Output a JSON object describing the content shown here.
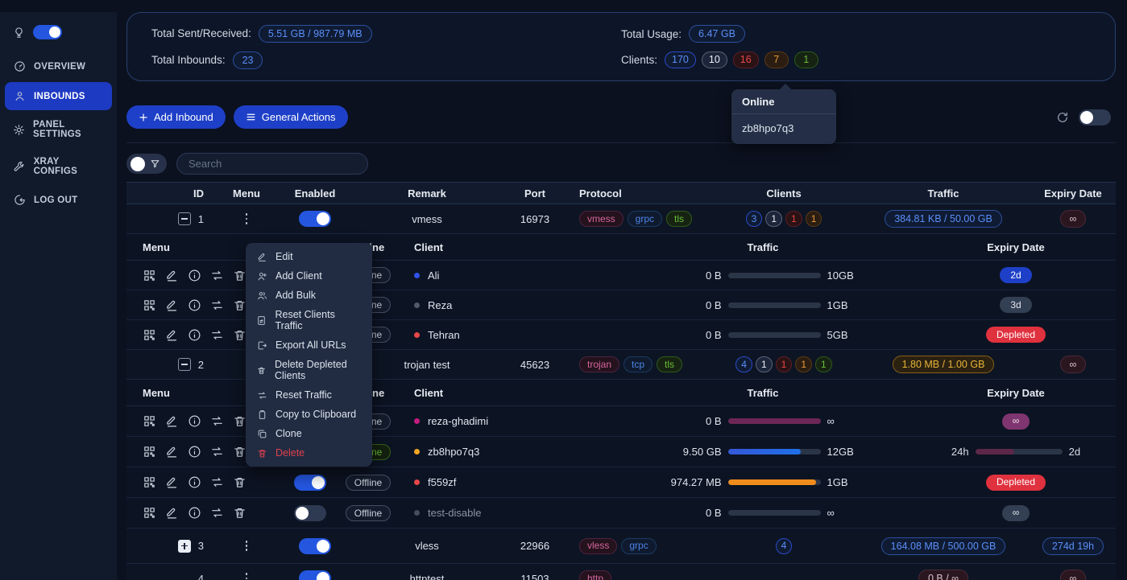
{
  "colors": {
    "accent_blue": "#1e40c8",
    "tag_blue": "#5b8ff9",
    "tag_pink": "#d5669c",
    "tag_green": "#6abe39",
    "badge_red": "#e84749",
    "badge_orange": "#e89a3c",
    "depleted_red": "#e0313f",
    "bar_blue": "#1f6fe8",
    "bar_orange": "#f08c1c",
    "bar_magenta": "#6d2757"
  },
  "sidebar": {
    "items": [
      {
        "label": "OVERVIEW"
      },
      {
        "label": "INBOUNDS"
      },
      {
        "label": "PANEL SETTINGS"
      },
      {
        "label": "XRAY CONFIGS"
      },
      {
        "label": "LOG OUT"
      }
    ]
  },
  "stats": {
    "sent_received_label": "Total Sent/Received:",
    "sent_received_value": "5.51 GB / 987.79 MB",
    "inbounds_label": "Total Inbounds:",
    "inbounds_value": "23",
    "usage_label": "Total Usage:",
    "usage_value": "6.47 GB",
    "clients_label": "Clients:",
    "client_badges": [
      {
        "value": "170",
        "color": "blue"
      },
      {
        "value": "10",
        "color": "gray"
      },
      {
        "value": "16",
        "color": "red"
      },
      {
        "value": "7",
        "color": "orange"
      },
      {
        "value": "1",
        "color": "green"
      }
    ]
  },
  "tooltip": {
    "title": "Online",
    "client": "zb8hpo7q3"
  },
  "toolbar": {
    "add_inbound": "Add Inbound",
    "general_actions": "General Actions"
  },
  "search": {
    "placeholder": "Search"
  },
  "table_headers": {
    "id": "ID",
    "menu": "Menu",
    "enabled": "Enabled",
    "remark": "Remark",
    "port": "Port",
    "protocol": "Protocol",
    "clients": "Clients",
    "traffic": "Traffic",
    "expiry": "Expiry Date"
  },
  "subtable_headers": {
    "menu": "Menu",
    "online": "Online",
    "client": "Client",
    "traffic": "Traffic",
    "expiry": "Expiry Date"
  },
  "context_menu": {
    "items": [
      {
        "label": "Edit"
      },
      {
        "label": "Add Client"
      },
      {
        "label": "Add Bulk"
      },
      {
        "label": "Reset Clients Traffic"
      },
      {
        "label": "Export All URLs"
      },
      {
        "label": "Delete Depleted Clients"
      },
      {
        "label": "Reset Traffic"
      },
      {
        "label": "Copy to Clipboard"
      },
      {
        "label": "Clone"
      },
      {
        "label": "Delete"
      }
    ]
  },
  "inbounds": [
    {
      "id": "1",
      "remark": "vmess",
      "port": "16973",
      "protocols": [
        "vmess",
        "grpc",
        "tls"
      ],
      "clients": [
        "3",
        "1",
        "1",
        "1"
      ],
      "traffic": "384.81 KB / 50.00 GB",
      "expiry": "∞"
    },
    {
      "id": "2",
      "remark": "trojan test",
      "port": "45623",
      "protocols": [
        "trojan",
        "tcp",
        "tls"
      ],
      "clients": [
        "4",
        "1",
        "1",
        "1",
        "1"
      ],
      "traffic": "1.80 MB / 1.00 GB",
      "expiry": "∞"
    },
    {
      "id": "3",
      "remark": "vless",
      "port": "22966",
      "protocols": [
        "vless",
        "grpc"
      ],
      "clients": [
        "4"
      ],
      "traffic": "164.08 MB / 500.00 GB",
      "expiry": "274d 19h"
    },
    {
      "id": "4",
      "remark": "httptest",
      "port": "11503",
      "protocols": [
        "http"
      ],
      "clients": [],
      "traffic": "0 B / ∞",
      "expiry": "∞"
    }
  ],
  "group1_clients": [
    {
      "name": "Ali",
      "status": "Offline",
      "used": "0 B",
      "total": "10GB",
      "bar_percent": 0,
      "expiry": "2d"
    },
    {
      "name": "Reza",
      "status": "Offline",
      "used": "0 B",
      "total": "1GB",
      "bar_percent": 0,
      "expiry": "3d"
    },
    {
      "name": "Tehran",
      "status": "Offline",
      "used": "0 B",
      "total": "5GB",
      "bar_percent": 0,
      "expiry": "Depleted"
    }
  ],
  "group2_clients": [
    {
      "name": "reza-ghadimi",
      "status": "Offline",
      "used": "0 B",
      "total": "∞",
      "bar_percent": 100,
      "expiry": "∞"
    },
    {
      "name": "zb8hpo7q3",
      "status": "Online",
      "used": "9.50 GB",
      "total": "12GB",
      "bar_percent": 79,
      "expiry_start": "24h",
      "expiry_end": "2d",
      "expiry_percent": 45
    },
    {
      "name": "f559zf",
      "status": "Offline",
      "used": "974.27 MB",
      "total": "1GB",
      "bar_percent": 95,
      "expiry": "Depleted"
    },
    {
      "name": "test-disable",
      "status": "Offline",
      "used": "0 B",
      "total": "∞",
      "bar_percent": 0,
      "expiry": "∞"
    }
  ]
}
